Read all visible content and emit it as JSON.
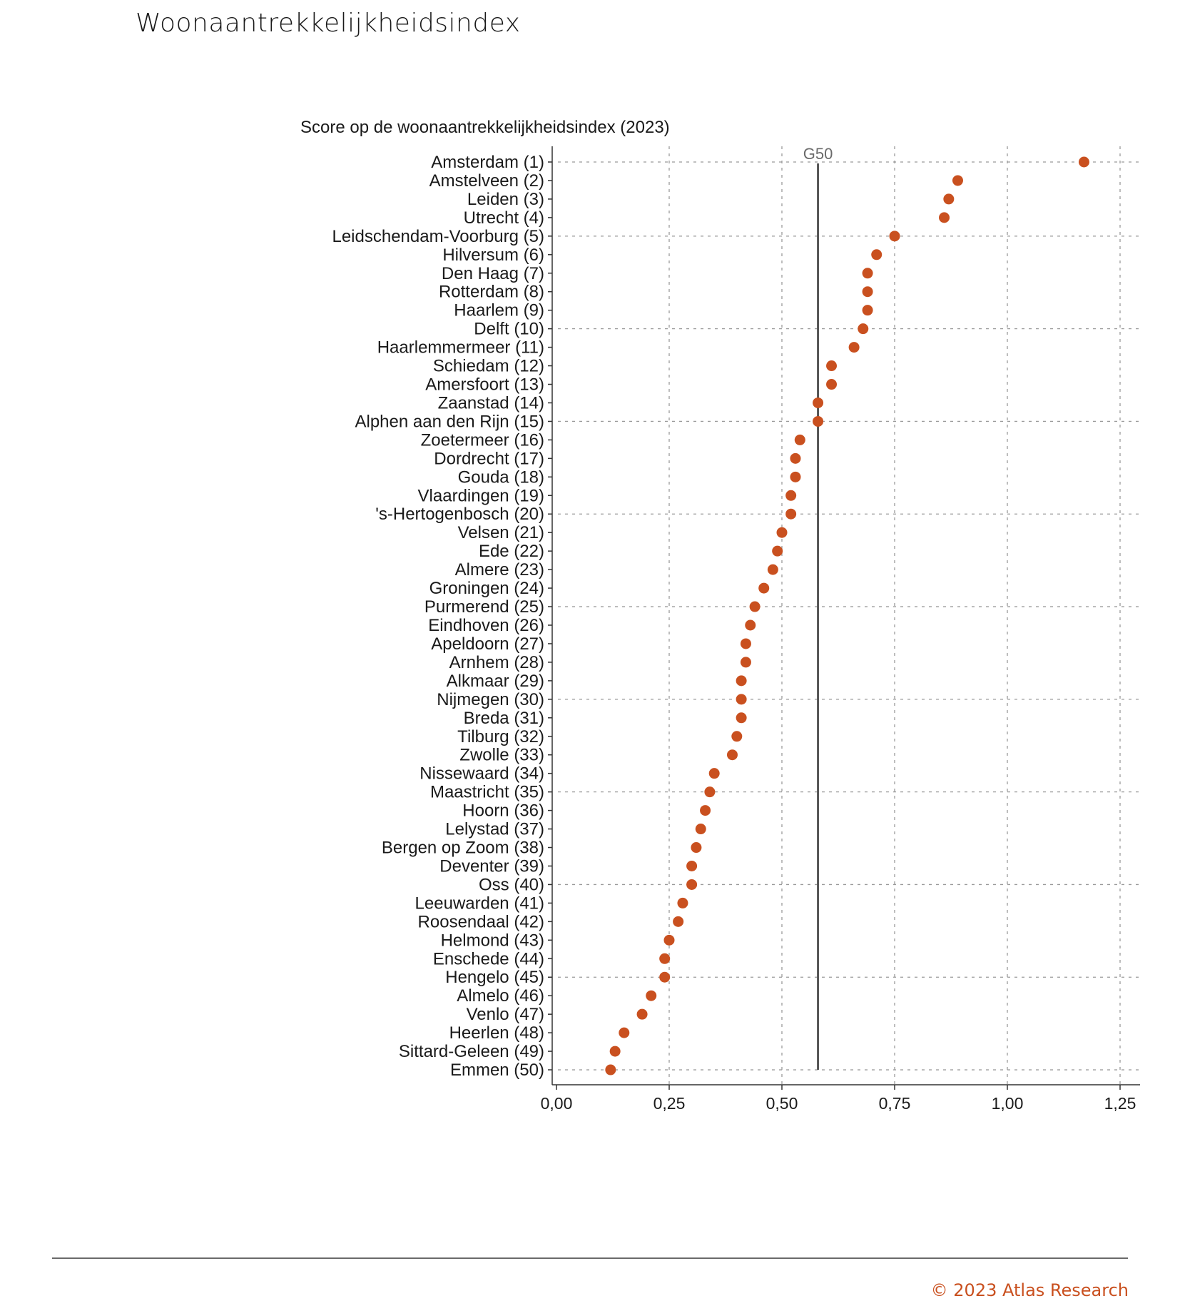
{
  "page": {
    "title": "Woonaantrekkelijkheidsindex",
    "copyright": "© 2023 Atlas Research"
  },
  "colors": {
    "dot": "#c9501f",
    "reference_line": "#555555",
    "grid": "#9a9a9a",
    "text": "#1a1a1a"
  },
  "chart_data": {
    "type": "scatter",
    "title": "Score op de woonaantrekkelijkheidsindex (2023)",
    "xlabel": "",
    "ylabel": "",
    "xlim": [
      0,
      1.25
    ],
    "x_ticks": [
      "0,00",
      "0,25",
      "0,50",
      "0,75",
      "1,00",
      "1,25"
    ],
    "x_tick_values": [
      0,
      0.25,
      0.5,
      0.75,
      1.0,
      1.25
    ],
    "grid": true,
    "reference_line": {
      "label": "G50",
      "value": 0.58
    },
    "categories": [
      "Amsterdam (1)",
      "Amstelveen (2)",
      "Leiden (3)",
      "Utrecht (4)",
      "Leidschendam-Voorburg (5)",
      "Hilversum (6)",
      "Den Haag (7)",
      "Rotterdam (8)",
      "Haarlem (9)",
      "Delft (10)",
      "Haarlemmermeer (11)",
      "Schiedam (12)",
      "Amersfoort (13)",
      "Zaanstad (14)",
      "Alphen aan den Rijn (15)",
      "Zoetermeer (16)",
      "Dordrecht (17)",
      "Gouda (18)",
      "Vlaardingen (19)",
      "'s-Hertogenbosch (20)",
      "Velsen (21)",
      "Ede (22)",
      "Almere (23)",
      "Groningen (24)",
      "Purmerend (25)",
      "Eindhoven (26)",
      "Apeldoorn (27)",
      "Arnhem (28)",
      "Alkmaar (29)",
      "Nijmegen (30)",
      "Breda (31)",
      "Tilburg (32)",
      "Zwolle (33)",
      "Nissewaard (34)",
      "Maastricht (35)",
      "Hoorn (36)",
      "Lelystad (37)",
      "Bergen op Zoom (38)",
      "Deventer (39)",
      "Oss (40)",
      "Leeuwarden (41)",
      "Roosendaal (42)",
      "Helmond (43)",
      "Enschede (44)",
      "Hengelo (45)",
      "Almelo (46)",
      "Venlo (47)",
      "Heerlen (48)",
      "Sittard-Geleen (49)",
      "Emmen (50)"
    ],
    "values": [
      1.17,
      0.89,
      0.87,
      0.86,
      0.75,
      0.71,
      0.69,
      0.69,
      0.69,
      0.68,
      0.66,
      0.61,
      0.61,
      0.58,
      0.58,
      0.54,
      0.53,
      0.53,
      0.52,
      0.52,
      0.5,
      0.49,
      0.48,
      0.46,
      0.44,
      0.43,
      0.42,
      0.42,
      0.41,
      0.41,
      0.41,
      0.4,
      0.39,
      0.35,
      0.34,
      0.33,
      0.32,
      0.31,
      0.3,
      0.3,
      0.28,
      0.27,
      0.25,
      0.24,
      0.24,
      0.21,
      0.19,
      0.15,
      0.13,
      0.12
    ]
  }
}
